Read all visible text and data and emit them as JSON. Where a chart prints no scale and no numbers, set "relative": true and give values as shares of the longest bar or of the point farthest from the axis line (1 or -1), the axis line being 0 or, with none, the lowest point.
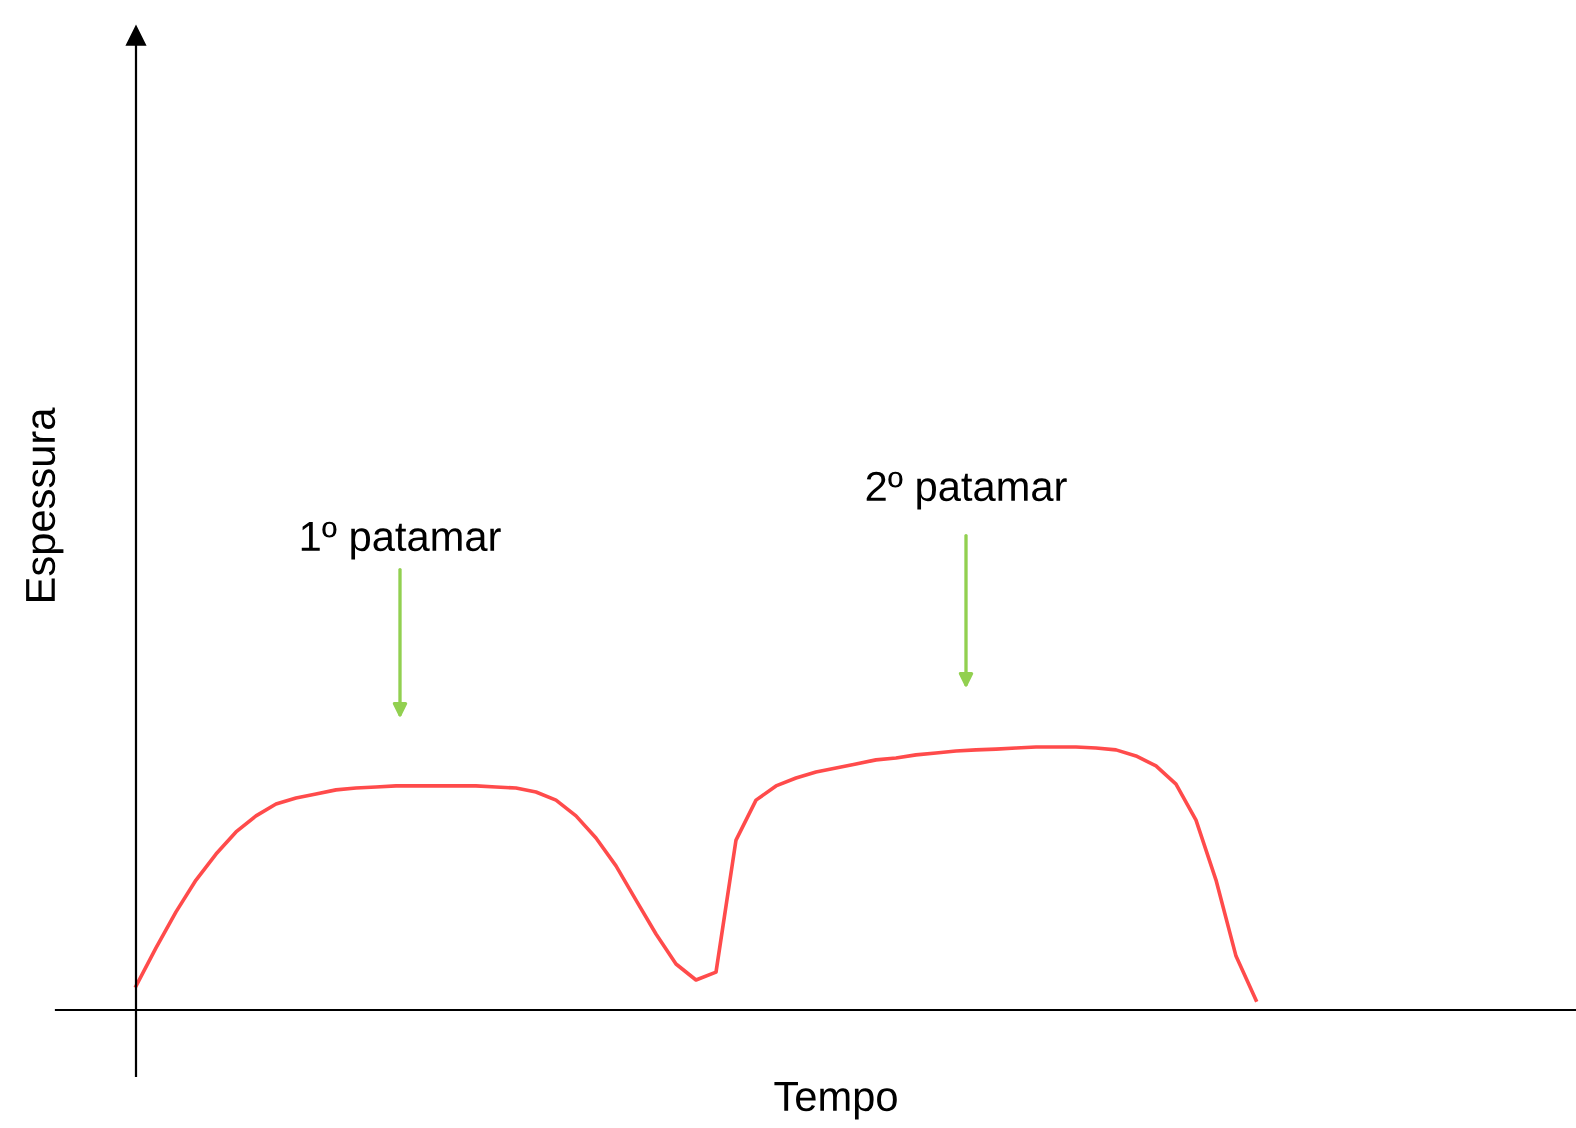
{
  "chart_data": {
    "type": "line",
    "relative": true,
    "xlabel": "Tempo",
    "ylabel": "Espessura",
    "annotations": [
      "1º patamar",
      "2º patamar"
    ],
    "categories": [
      null,
      null,
      null,
      null,
      null,
      null,
      null,
      null,
      null,
      null,
      null,
      null,
      null,
      null,
      null,
      null,
      null,
      null,
      null,
      null,
      null,
      null,
      null,
      null,
      null,
      null,
      null,
      null,
      null,
      null,
      null,
      null,
      null,
      null,
      null,
      null,
      null,
      null,
      null,
      null,
      null,
      null,
      null,
      null,
      null,
      null,
      null,
      null,
      null,
      null,
      null,
      null,
      null,
      null,
      null,
      null,
      null
    ],
    "series": [
      {
        "color": "#ff4b4b",
        "values": [
          0.091,
          0.236,
          0.373,
          0.494,
          0.593,
          0.677,
          0.738,
          0.783,
          0.806,
          0.821,
          0.837,
          0.844,
          0.848,
          0.852,
          0.852,
          0.852,
          0.852,
          0.852,
          0.848,
          0.844,
          0.829,
          0.798,
          0.738,
          0.654,
          0.548,
          0.418,
          0.289,
          0.175,
          0.114,
          0.144,
          0.646,
          0.798,
          0.852,
          0.882,
          0.905,
          0.92,
          0.935,
          0.951,
          0.958,
          0.97,
          0.977,
          0.985,
          0.989,
          0.992,
          0.996,
          1,
          1,
          1,
          0.996,
          0.989,
          0.966,
          0.928,
          0.859,
          0.722,
          0.494,
          0.205,
          0.038
        ]
      }
    ],
    "legend": false,
    "marker": "none",
    "line_style": "solid"
  }
}
